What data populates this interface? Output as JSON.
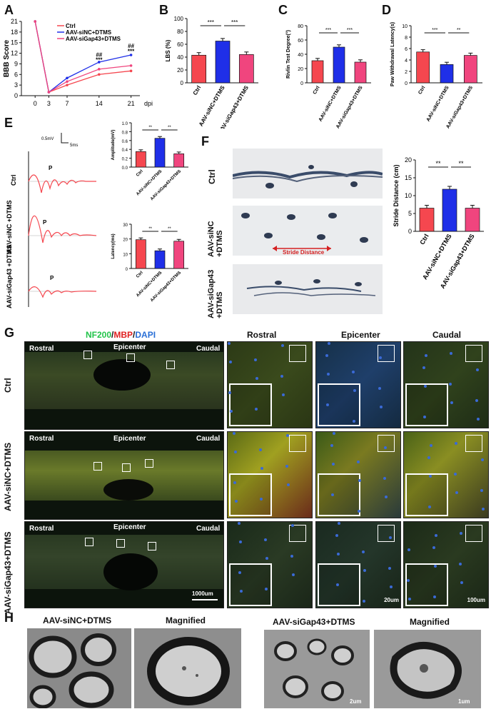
{
  "colors": {
    "ctrl": "#f5474f",
    "sinc": "#1f2fe8",
    "sigap": "#f0457e",
    "dark": "#111111"
  },
  "panels": {
    "A": "A",
    "B": "B",
    "C": "C",
    "D": "D",
    "E": "E",
    "F": "F",
    "G": "G",
    "H": "H"
  },
  "chart_data": [
    {
      "id": "A",
      "type": "line",
      "ylabel": "BBB Score",
      "xlabel": "dpi",
      "x": [
        0,
        3,
        7,
        14,
        21
      ],
      "yticks": [
        "0",
        "3",
        "6",
        "9",
        "12",
        "15",
        "18",
        "21"
      ],
      "xticks": [
        "0",
        "3",
        "7",
        "14",
        "21"
      ],
      "ylim": [
        0,
        21
      ],
      "series": [
        {
          "name": "Ctrl",
          "color": "#f5474f",
          "values": [
            21,
            1,
            3,
            6,
            7
          ]
        },
        {
          "name": "AAV-siNC+DTMS",
          "color": "#1f2fe8",
          "values": [
            21,
            1,
            5,
            9.5,
            11.5
          ]
        },
        {
          "name": "AAV-siGap43+DTMS",
          "color": "#f0457e",
          "values": [
            21,
            1,
            4,
            7.5,
            8.5
          ]
        }
      ],
      "annotations": [
        "##",
        "***",
        "##",
        "***"
      ]
    },
    {
      "id": "B",
      "type": "bar",
      "ylabel": "LBS (%)",
      "categories": [
        "Ctrl",
        "AAV-siNC+DTMS",
        "AAV-siGap43+DTMS"
      ],
      "values": [
        43,
        65,
        44
      ],
      "ylim": [
        0,
        100
      ],
      "yticks": [
        "0",
        "20",
        "40",
        "60",
        "80",
        "100"
      ],
      "annotations": [
        "***",
        "***"
      ]
    },
    {
      "id": "C",
      "type": "bar",
      "ylabel": "Rivlin Test Degree(°)",
      "categories": [
        "Ctrl",
        "AAV-siNC+DTMS",
        "AAV-siGap43+DTMS"
      ],
      "values": [
        31,
        50,
        29
      ],
      "ylim": [
        0,
        80
      ],
      "yticks": [
        "0",
        "20",
        "40",
        "60",
        "80"
      ],
      "annotations": [
        "***",
        "***"
      ]
    },
    {
      "id": "D",
      "type": "bar",
      "ylabel": "Paw Withdrawal Latency(s)",
      "categories": [
        "Ctrl",
        "AAV-siNC+DTMS",
        "AAV-siGap43+DTMS"
      ],
      "values": [
        5.4,
        3.2,
        4.8
      ],
      "ylim": [
        0,
        10
      ],
      "yticks": [
        "0",
        "2",
        "4",
        "6",
        "8",
        "10"
      ],
      "annotations": [
        "***",
        "**"
      ]
    },
    {
      "id": "E1",
      "type": "bar",
      "ylabel": "Amplitude(mV)",
      "categories": [
        "Ctrl",
        "AAV-siNC+DTMS",
        "AAV-siGap43+DTMS"
      ],
      "values": [
        0.35,
        0.65,
        0.3
      ],
      "ylim": [
        0,
        1.0
      ],
      "yticks": [
        "0.0",
        "0.2",
        "0.4",
        "0.6",
        "0.8",
        "1.0"
      ],
      "annotations": [
        "**",
        "**"
      ]
    },
    {
      "id": "E2",
      "type": "bar",
      "ylabel": "Latency(ms)",
      "categories": [
        "Ctrl",
        "AAV-siNC+DTMS",
        "AAV-siGap43+DTMS"
      ],
      "values": [
        19.5,
        12,
        18.5
      ],
      "ylim": [
        0,
        30
      ],
      "yticks": [
        "0",
        "10",
        "20",
        "30"
      ],
      "annotations": [
        "**",
        "**"
      ]
    },
    {
      "id": "F",
      "type": "bar",
      "ylabel": "Stride Distance (cm)",
      "categories": [
        "Ctrl",
        "AAV-siNC+DTMS",
        "AAV-siGap43+DTMS"
      ],
      "values": [
        6.5,
        11.8,
        6.5
      ],
      "ylim": [
        0,
        20
      ],
      "yticks": [
        "0",
        "5",
        "10",
        "15",
        "20"
      ],
      "annotations": [
        "**",
        "**"
      ]
    }
  ],
  "panel_e": {
    "scale_mv": "0.5mV",
    "scale_ms": "5ms",
    "groups": [
      "Ctrl",
      "AAV-siNC\n+DTMS",
      "AAV-siGap43\n+DTMS"
    ],
    "peak_label": "P"
  },
  "panel_f": {
    "rows": [
      "Ctrl",
      "AAV-siNC\n+DTMS",
      "AAV-siGap43\n+DTMS"
    ],
    "stride_label": "Stride Distance"
  },
  "panel_g": {
    "title_nf": "NF200",
    "title_mbp": "MBP",
    "title_dapi": "DAPI",
    "slash": "/",
    "cols": [
      "Rostral",
      "Epicenter",
      "Caudal"
    ],
    "rows": [
      "Ctrl",
      "AAV-siNC+DTMS",
      "AAV-siGap43+DTMS"
    ],
    "overview_rostral": "Rostral",
    "overview_epicenter": "Epicenter",
    "overview_caudal": "Caudal",
    "scale_1000": "1000um",
    "scale_20": "20um",
    "scale_100": "100um"
  },
  "panel_h": {
    "titles": [
      "AAV-siNC+DTMS",
      "Magnified",
      "AAV-siGap43+DTMS",
      "Magnified"
    ],
    "scale_2": "2um",
    "scale_1": "1um"
  }
}
